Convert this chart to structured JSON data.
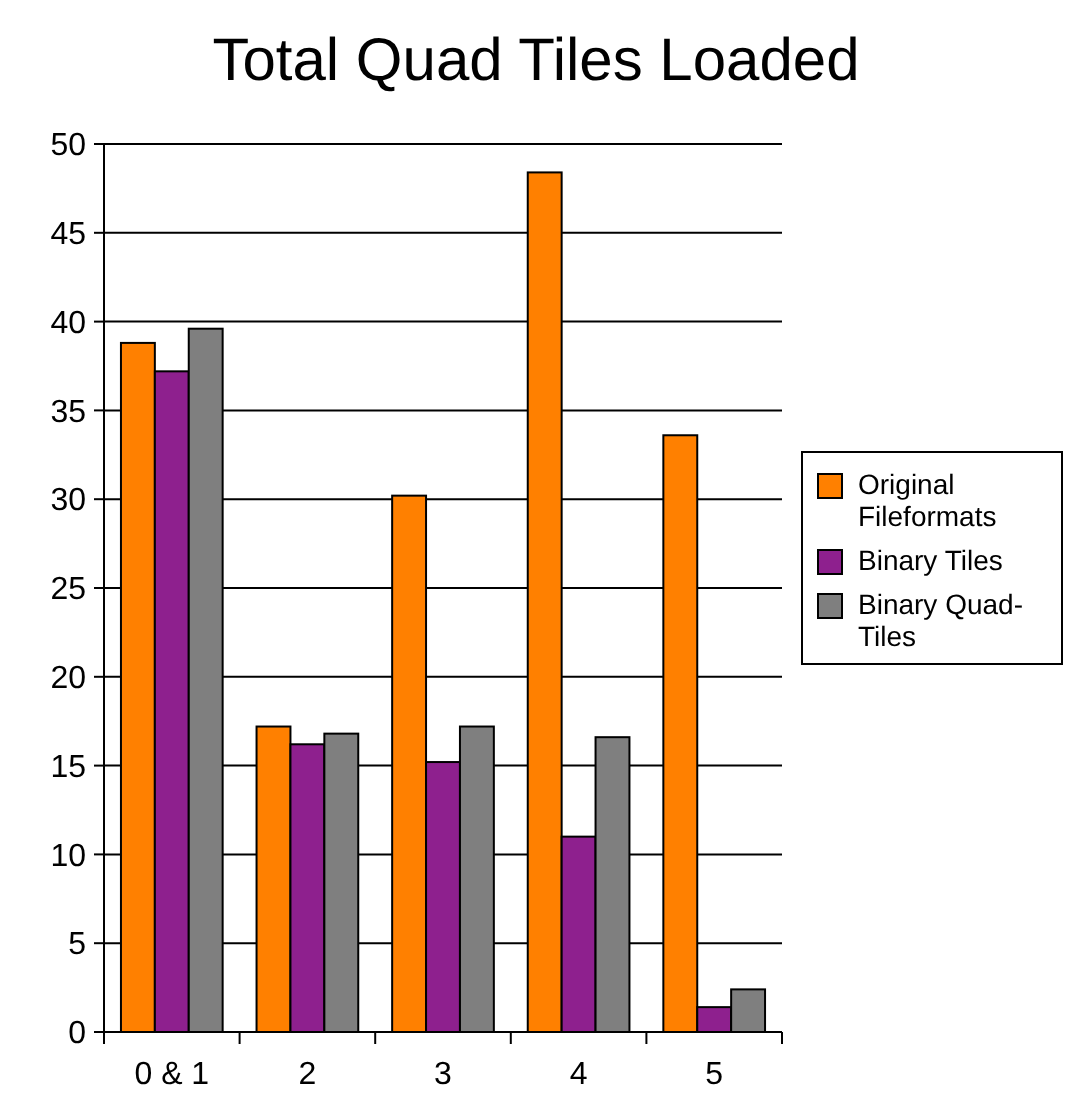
{
  "chart_data": {
    "type": "bar",
    "title": "Total Quad Tiles Loaded",
    "categories": [
      "0 & 1",
      "2",
      "3",
      "4",
      "5"
    ],
    "series": [
      {
        "name": "Original Fileformats",
        "color": "#ff8000",
        "values": [
          38.8,
          17.2,
          30.2,
          48.4,
          33.6
        ]
      },
      {
        "name": "Binary Tiles",
        "color": "#8e208e",
        "values": [
          37.2,
          16.2,
          15.2,
          11.0,
          1.4
        ]
      },
      {
        "name": "Binary Quad-Tiles",
        "color": "#7f7f7f",
        "values": [
          39.6,
          16.8,
          17.2,
          16.6,
          2.4
        ]
      }
    ],
    "ylim": [
      0,
      50
    ],
    "yticks": [
      0,
      5,
      10,
      15,
      20,
      25,
      30,
      35,
      40,
      45,
      50
    ],
    "grid": "y",
    "legend": "right"
  }
}
